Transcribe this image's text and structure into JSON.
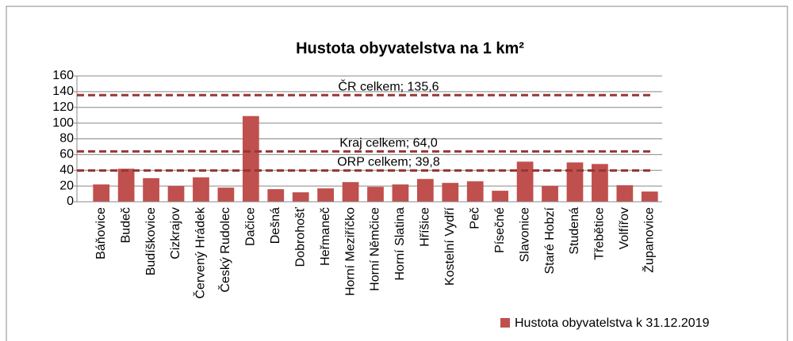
{
  "chart_data": {
    "type": "bar",
    "title": "Hustota obyvatelstva na 1 km²",
    "categories": [
      "Báňovice",
      "Budeč",
      "Budíškovice",
      "Cizkrajov",
      "Červený Hrádek",
      "Český Rudolec",
      "Dačice",
      "Dešná",
      "Dobrohošť",
      "Heřmaneč",
      "Horní Meziříčko",
      "Horní Němčice",
      "Horní Slatina",
      "Hříšice",
      "Kostelní Vydří",
      "Peč",
      "Písečné",
      "Slavonice",
      "Staré Hobzí",
      "Studená",
      "Třebětice",
      "Volfířov",
      "Županovice"
    ],
    "series": [
      {
        "name": "Hustota obyvatelstva k 31.12.2019",
        "color": "#c0504d",
        "values": [
          22,
          42,
          30,
          20,
          31,
          18,
          109,
          16,
          12,
          17,
          25,
          19,
          22,
          29,
          24,
          26,
          14,
          51,
          20,
          50,
          48,
          21,
          13
        ]
      }
    ],
    "reference_lines": [
      {
        "label": "ČR celkem; 135,6",
        "value": 135.6,
        "color": "#953735"
      },
      {
        "label": "Kraj celkem; 64,0",
        "value": 64.0,
        "color": "#953735"
      },
      {
        "label": "ORP celkem; 39,8",
        "value": 39.8,
        "color": "#953735"
      }
    ],
    "ylim": [
      0,
      160
    ],
    "yticks": [
      0,
      20,
      40,
      60,
      80,
      100,
      120,
      140,
      160
    ],
    "grid": true,
    "legend": "bottom-right"
  }
}
